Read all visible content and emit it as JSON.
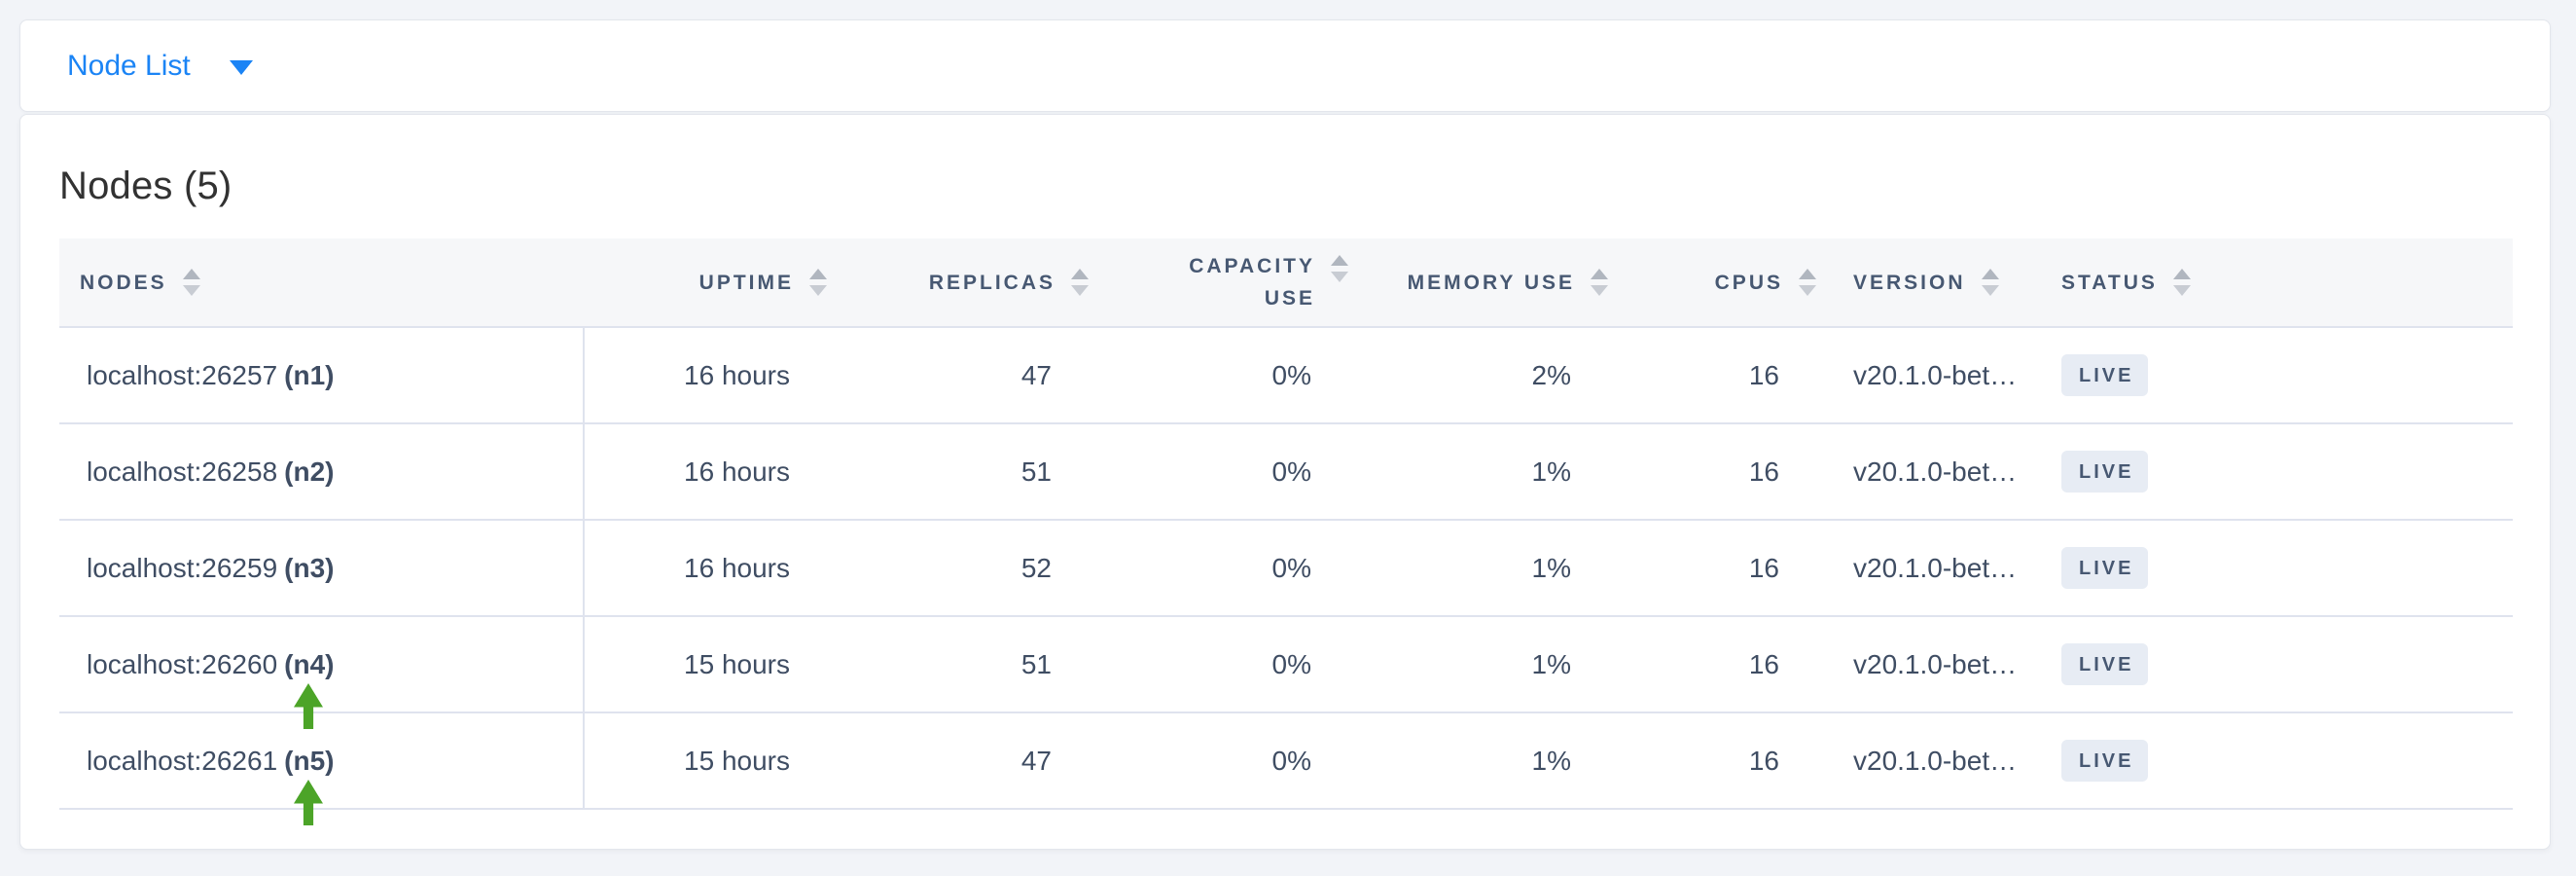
{
  "topbar": {
    "dropdown_label": "Node List"
  },
  "main": {
    "title": "Nodes (5)"
  },
  "table": {
    "columns": [
      {
        "id": "nodes",
        "label": "NODES"
      },
      {
        "id": "uptime",
        "label": "UPTIME"
      },
      {
        "id": "replicas",
        "label": "REPLICAS"
      },
      {
        "id": "capacity_use",
        "label": "CAPACITY USE"
      },
      {
        "id": "memory_use",
        "label": "MEMORY USE"
      },
      {
        "id": "cpus",
        "label": "CPUS"
      },
      {
        "id": "version",
        "label": "VERSION"
      },
      {
        "id": "status",
        "label": "STATUS"
      }
    ],
    "rows": [
      {
        "node_address": "localhost:26257",
        "node_id": "(n1)",
        "uptime": "16 hours",
        "replicas": "47",
        "capacity_use": "0%",
        "memory_use": "2%",
        "cpus": "16",
        "version": "v20.1.0-bet…",
        "status": "LIVE",
        "annotated": false
      },
      {
        "node_address": "localhost:26258",
        "node_id": "(n2)",
        "uptime": "16 hours",
        "replicas": "51",
        "capacity_use": "0%",
        "memory_use": "1%",
        "cpus": "16",
        "version": "v20.1.0-bet…",
        "status": "LIVE",
        "annotated": false
      },
      {
        "node_address": "localhost:26259",
        "node_id": "(n3)",
        "uptime": "16 hours",
        "replicas": "52",
        "capacity_use": "0%",
        "memory_use": "1%",
        "cpus": "16",
        "version": "v20.1.0-bet…",
        "status": "LIVE",
        "annotated": false
      },
      {
        "node_address": "localhost:26260",
        "node_id": "(n4)",
        "uptime": "15 hours",
        "replicas": "51",
        "capacity_use": "0%",
        "memory_use": "1%",
        "cpus": "16",
        "version": "v20.1.0-bet…",
        "status": "LIVE",
        "annotated": true
      },
      {
        "node_address": "localhost:26261",
        "node_id": "(n5)",
        "uptime": "15 hours",
        "replicas": "47",
        "capacity_use": "0%",
        "memory_use": "1%",
        "cpus": "16",
        "version": "v20.1.0-bet…",
        "status": "LIVE",
        "annotated": true
      }
    ]
  },
  "colors": {
    "page_bg": "#f2f4f8",
    "accent_blue": "#1b84f5",
    "annotation_green": "#4ca428",
    "header_bg": "#f6f7f9",
    "header_text": "#475872",
    "cell_text": "#3f4d63",
    "row_border": "#dfe3ee",
    "badge_bg": "#e7ecf4",
    "badge_text": "#475872"
  }
}
